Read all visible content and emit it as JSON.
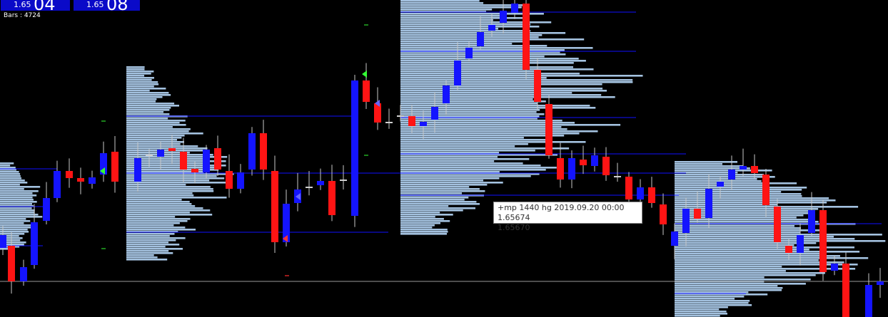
{
  "header": {
    "quotes": [
      {
        "prefix": "1.65",
        "digits": "04"
      },
      {
        "prefix": "1.65",
        "digits": "08"
      }
    ],
    "bars_label": "Bars : 4724"
  },
  "tooltip": {
    "lines": [
      "+mp 1440 hg 2019.09.20 00:00 1.65674",
      "1.65670"
    ]
  }
}
